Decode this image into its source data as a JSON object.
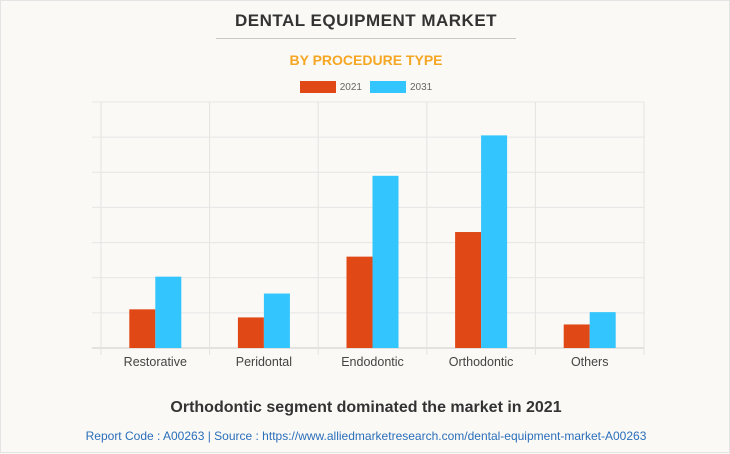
{
  "chart_data": {
    "type": "bar",
    "title": "DENTAL EQUIPMENT MARKET",
    "subtitle": "BY PROCEDURE TYPE",
    "xlabel": "",
    "ylabel": "",
    "categories": [
      "Restorative",
      "Peridontal",
      "Endodontic",
      "Orthodontic",
      "Others"
    ],
    "series": [
      {
        "name": "2021",
        "color": "#e04816",
        "values": [
          1.1,
          0.87,
          2.6,
          3.3,
          0.67
        ]
      },
      {
        "name": "2031",
        "color": "#33c5fd",
        "values": [
          2.03,
          1.55,
          4.9,
          6.05,
          1.02
        ]
      }
    ],
    "ylim": [
      0,
      7
    ],
    "y_gridlines": 7,
    "grid": true,
    "legend_position": "top-center",
    "y_units": "relative (no axis labels shown)"
  },
  "caption": "Orthodontic segment dominated the market in 2021",
  "source": "Report Code : A00263  |  Source : https://www.alliedmarketresearch.com/dental-equipment-market-A00263"
}
